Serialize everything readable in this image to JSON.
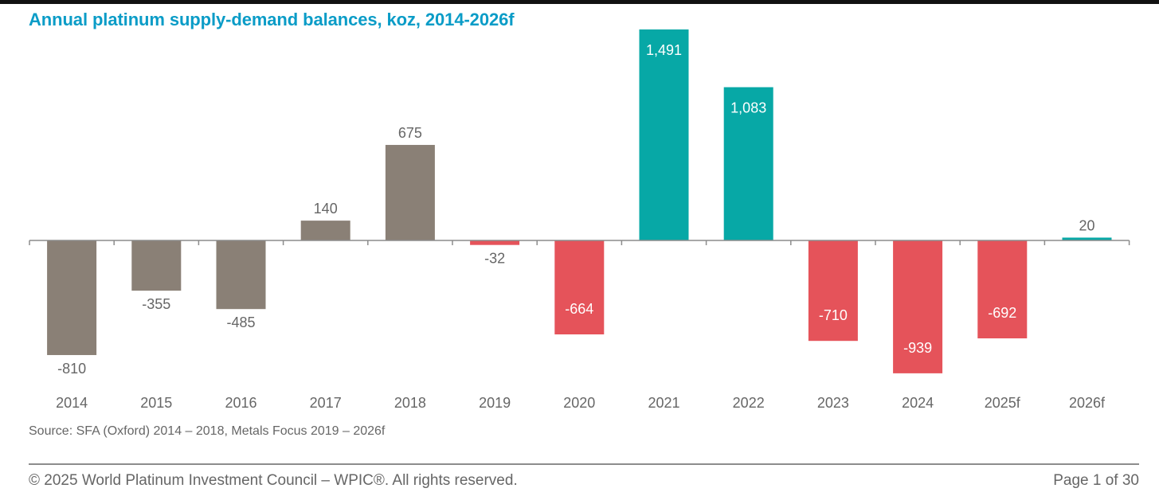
{
  "page": {
    "source_note": "Source: SFA (Oxford) 2014 – 2018,  Metals Focus 2019 – 2026f",
    "copyright": "© 2025 World Platinum Investment Council – WPIC®. All rights reserved.",
    "page_indicator": "Page 1 of 30"
  },
  "colors": {
    "title": "#0a9cc7",
    "historic_bar": "#8a8076",
    "deficit_bar": "#e5535a",
    "surplus_bar": "#07a8a6",
    "axis": "#8c8c8c",
    "label_dark": "#666666",
    "label_light": "#ffffff"
  },
  "chart_data": {
    "type": "bar",
    "title": "Annual platinum supply-demand balances, koz, 2014-2026f",
    "xlabel": "",
    "ylabel": "koz",
    "categories": [
      "2014",
      "2015",
      "2016",
      "2017",
      "2018",
      "2019",
      "2020",
      "2021",
      "2022",
      "2023",
      "2024",
      "2025f",
      "2026f"
    ],
    "values": [
      -810,
      -355,
      -485,
      140,
      675,
      -32,
      -664,
      1491,
      1083,
      -710,
      -939,
      -692,
      20
    ],
    "data_labels": [
      "-810",
      "-355",
      "-485",
      "140",
      "675",
      "-32",
      "-664",
      "1,491",
      "1,083",
      "-710",
      "-939",
      "-692",
      "20"
    ],
    "bar_groups": [
      "historic",
      "historic",
      "historic",
      "historic",
      "historic",
      "deficit",
      "deficit",
      "surplus",
      "surplus",
      "deficit",
      "deficit",
      "deficit",
      "surplus"
    ],
    "label_inside": [
      false,
      false,
      false,
      false,
      false,
      false,
      true,
      true,
      true,
      true,
      true,
      true,
      false
    ],
    "ylim": [
      -1000,
      1500
    ],
    "grid": false,
    "legend": "none"
  }
}
